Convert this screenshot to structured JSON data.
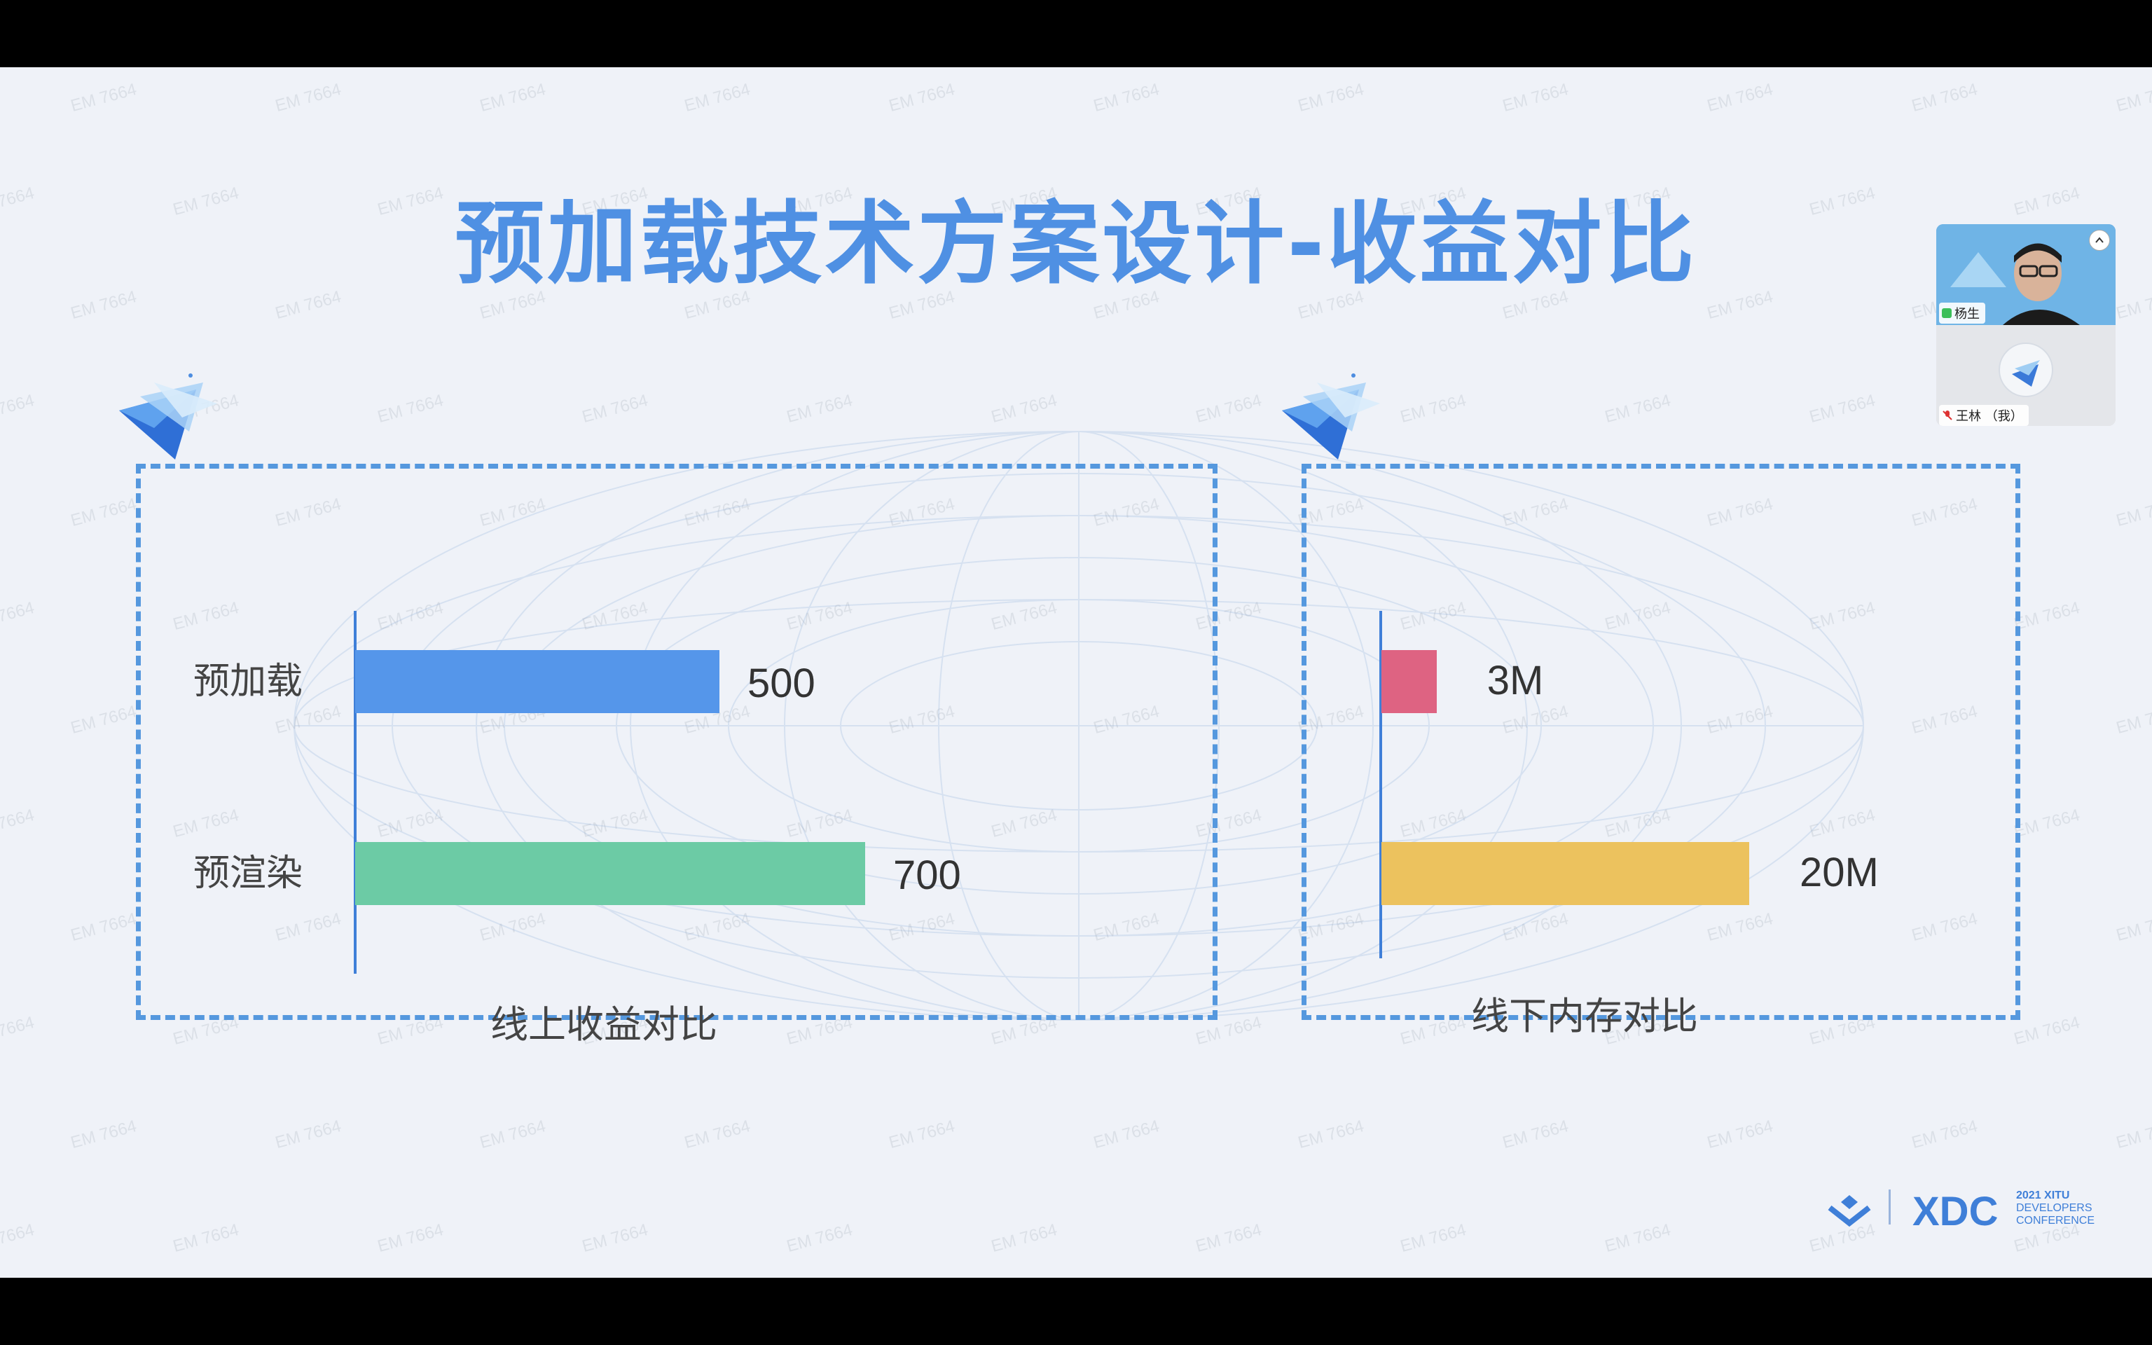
{
  "slide": {
    "title": "预加载技术方案设计-收益对比",
    "watermark": "EM 7664"
  },
  "chart_data": [
    {
      "type": "bar",
      "orientation": "horizontal",
      "title": "线上收益对比",
      "categories": [
        "预加载",
        "预渲染"
      ],
      "values": [
        500,
        700
      ],
      "value_labels": [
        "500",
        "700"
      ],
      "colors": [
        "#5596ea",
        "#6ccba5"
      ],
      "xlim": [
        0,
        1000
      ]
    },
    {
      "type": "bar",
      "orientation": "horizontal",
      "title": "线下内存对比",
      "categories": [
        "预加载",
        "预渲染"
      ],
      "values": [
        3,
        20
      ],
      "value_labels": [
        "3M",
        "20M"
      ],
      "colors": [
        "#de6382",
        "#ecc25e"
      ],
      "xlim": [
        0,
        32
      ]
    }
  ],
  "video": {
    "participants": [
      {
        "name": "杨生",
        "mic": "on"
      },
      {
        "name": "王林 （我）",
        "mic": "muted"
      }
    ]
  },
  "logo": {
    "brand": "XDC",
    "line1": "2021 XITU",
    "line2": "DEVELOPERS",
    "line3": "CONFERENCE"
  }
}
